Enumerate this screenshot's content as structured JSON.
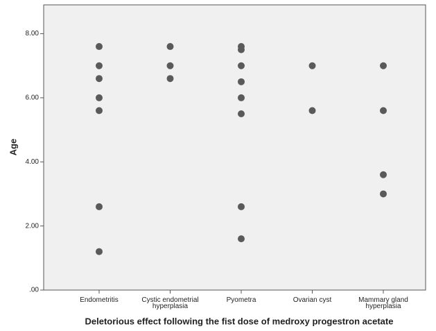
{
  "chart_data": {
    "type": "strip",
    "x_label": "Deletorious effect following the fist dose of medroxy progestron acetate",
    "y_label": "Age",
    "categories": [
      "Endometritis",
      "Cystic endometrial\nhyperplasia",
      "Pyometra",
      "Ovarian cyst",
      "Mammary gland\nhyperplasia"
    ],
    "values": [
      [
        7.6,
        7.0,
        6.6,
        6.0,
        5.6,
        2.6,
        1.2
      ],
      [
        7.6,
        7.0,
        6.6
      ],
      [
        7.6,
        7.5,
        7.0,
        6.5,
        6.0,
        5.5,
        2.6,
        1.6
      ],
      [
        7.0,
        5.6
      ],
      [
        7.0,
        5.6,
        3.6,
        3.0
      ]
    ],
    "color": "#5a5a5a",
    "ylim": [
      0,
      8.9
    ],
    "yticks": [
      {
        "value": 0,
        "label": ".00"
      },
      {
        "value": 2,
        "label": "2.00"
      },
      {
        "value": 4,
        "label": "4.00"
      },
      {
        "value": 6,
        "label": "6.00"
      },
      {
        "value": 8,
        "label": "8.00"
      }
    ]
  }
}
